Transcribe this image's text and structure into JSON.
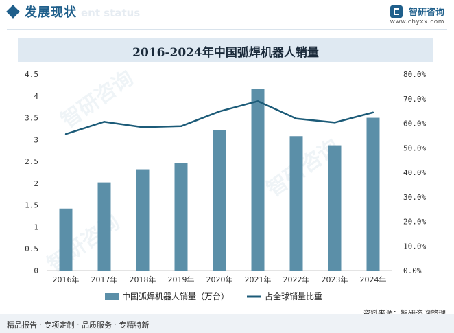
{
  "header": {
    "section_title": "发展现状",
    "section_subtitle": "ent status",
    "brand_name": "智研咨询",
    "brand_url": "www.chyxx.com"
  },
  "chart_data": {
    "type": "bar",
    "title": "2016-2024年中国弧焊机器人销量",
    "categories": [
      "2016年",
      "2017年",
      "2018年",
      "2019年",
      "2020年",
      "2021年",
      "2022年",
      "2023年",
      "2024年"
    ],
    "series": [
      {
        "name": "中国弧焊机器人销量（万台）",
        "type": "bar",
        "axis": "left",
        "values": [
          1.42,
          2.02,
          2.32,
          2.46,
          3.21,
          4.16,
          3.08,
          2.87,
          3.5
        ]
      },
      {
        "name": "占全球销量比重",
        "type": "line",
        "axis": "right",
        "values": [
          55.6,
          60.6,
          58.4,
          58.8,
          64.8,
          69.0,
          61.9,
          60.3,
          64.4
        ]
      }
    ],
    "y_left": {
      "min": 0,
      "max": 4.5,
      "ticks": [
        "0",
        "0.5",
        "1",
        "1.5",
        "2",
        "2.5",
        "3",
        "3.5",
        "4",
        "4.5"
      ]
    },
    "y_right": {
      "min": 0,
      "max": 80,
      "ticks": [
        "0.0%",
        "10.0%",
        "20.0%",
        "30.0%",
        "40.0%",
        "50.0%",
        "60.0%",
        "70.0%",
        "80.0%"
      ]
    },
    "colors": {
      "bar": "#5b8fa8",
      "line": "#1c5b78"
    },
    "legend_position": "bottom",
    "grid": false
  },
  "footer": {
    "left": "精品报告 · 专项定制 · 品质服务 · 专精特新",
    "source": "资料来源：智研咨询整理"
  }
}
